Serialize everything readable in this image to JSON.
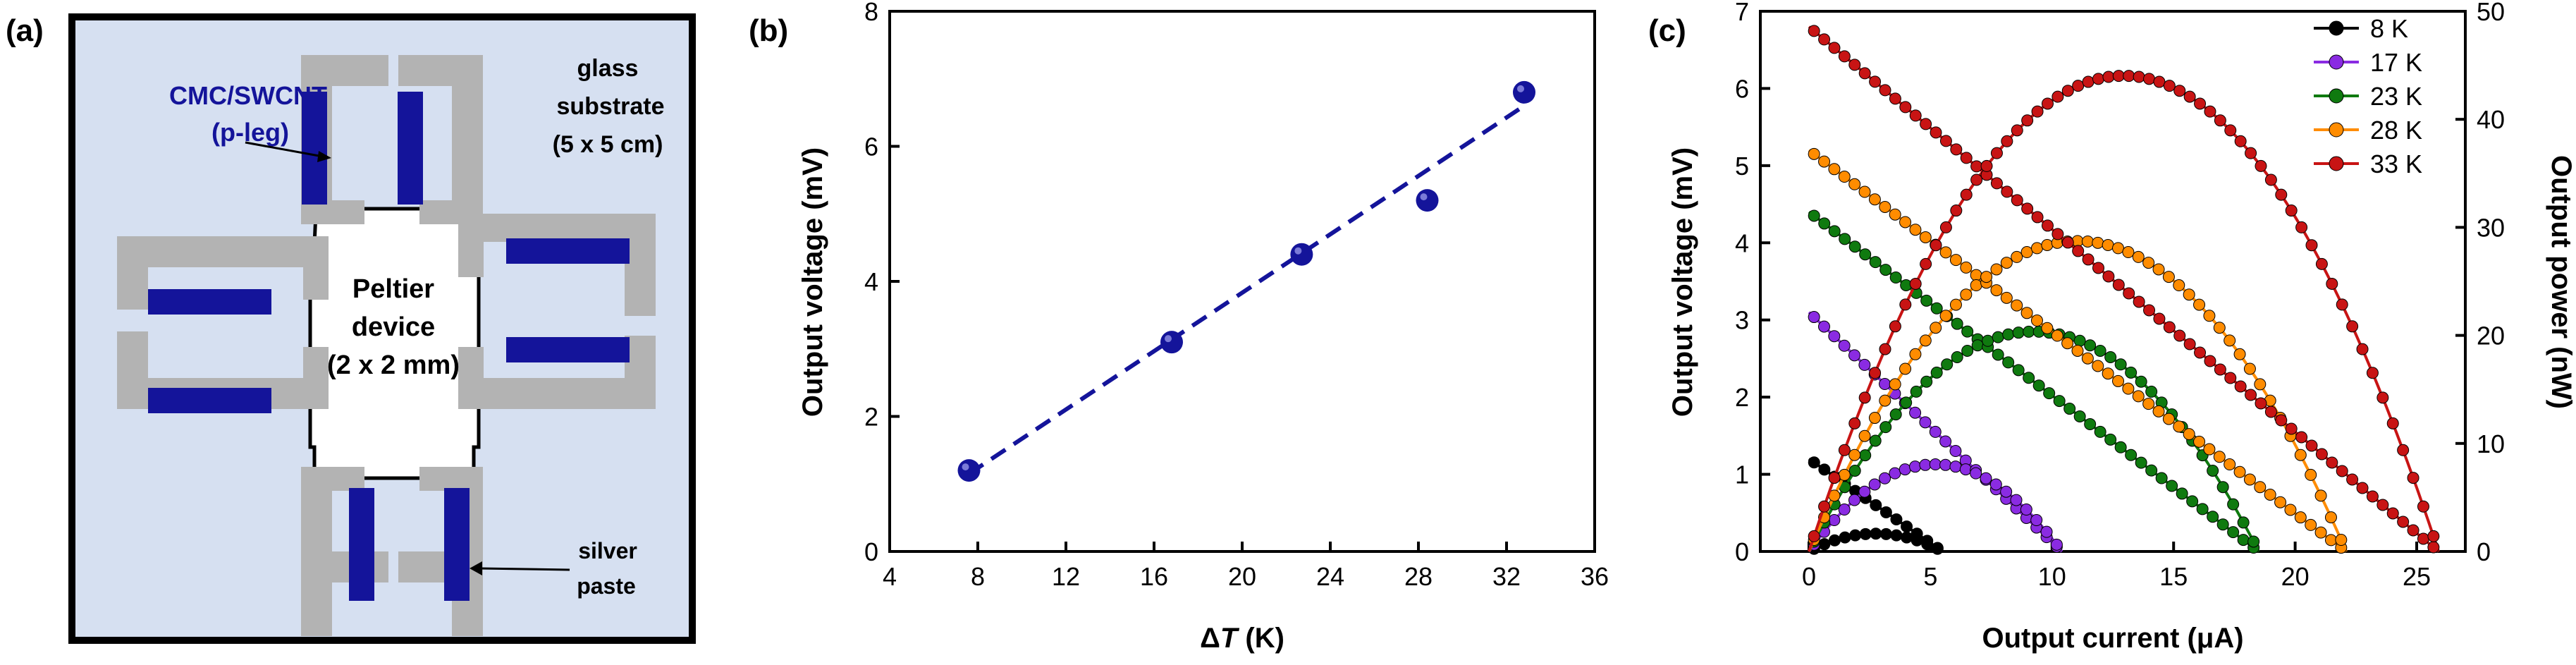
{
  "panel_a": {
    "letter": "(a)",
    "labels": {
      "cnt_line1": "CMC/SWCNT",
      "cnt_line2": "(p-leg)",
      "glass_line1": "glass",
      "glass_line2": "substrate",
      "glass_line3": "(5 x 5 cm)",
      "peltier_line1": "Peltier",
      "peltier_line2": "device",
      "peltier_line3": "(2 x 2 mm)",
      "silver_line1": "silver",
      "silver_line2": "paste"
    },
    "colors": {
      "substrate": "#d6e0f1",
      "electrode": "#b3b3b3",
      "leg": "#14149a",
      "blue_text": "#14149a"
    }
  },
  "chart_data": [
    {
      "id": "b",
      "letter": "(b)",
      "type": "scatter",
      "xlabel_symbol": "Δ",
      "xlabel_var": "T",
      "xlabel_unit": " (K)",
      "ylabel": "Output voltage (mV)",
      "xlim": [
        4,
        36
      ],
      "ylim": [
        0,
        8
      ],
      "xticks": [
        4,
        8,
        12,
        16,
        20,
        24,
        28,
        32,
        36
      ],
      "yticks": [
        0,
        2,
        4,
        6,
        8
      ],
      "points": [
        {
          "x": 7.6,
          "y": 1.2
        },
        {
          "x": 16.8,
          "y": 3.1
        },
        {
          "x": 22.7,
          "y": 4.4
        },
        {
          "x": 28.4,
          "y": 5.2
        },
        {
          "x": 32.8,
          "y": 6.8
        }
      ],
      "fit": {
        "x": [
          7.6,
          32.8
        ],
        "y": [
          1.15,
          6.6
        ]
      },
      "color": "#14149a"
    },
    {
      "id": "c",
      "letter": "(c)",
      "type": "line",
      "xlabel": "Output current (μA)",
      "ylabel_left": "Output voltage (mV)",
      "ylabel_right": "Output power (nW)",
      "xlim": [
        -2,
        27
      ],
      "ylim_left": [
        0,
        7
      ],
      "ylim_right": [
        0,
        50
      ],
      "xticks": [
        0,
        5,
        10,
        15,
        20,
        25
      ],
      "yticks_left": [
        0,
        1,
        2,
        3,
        4,
        5,
        6,
        7
      ],
      "yticks_right": [
        0,
        10,
        20,
        30,
        40,
        50
      ],
      "legend_position": "top-right",
      "series": [
        {
          "name": "8 K",
          "voc": 1.2,
          "isc": 5.5,
          "color": "#000000"
        },
        {
          "name": "17 K",
          "voc": 3.1,
          "isc": 10.4,
          "color": "#8a2be2"
        },
        {
          "name": "23 K",
          "voc": 4.4,
          "isc": 18.5,
          "color": "#0f7a0f"
        },
        {
          "name": "28 K",
          "voc": 5.2,
          "isc": 22.1,
          "color": "#ff8c00"
        },
        {
          "name": "33 K",
          "voc": 6.8,
          "isc": 25.9,
          "color": "#c81414"
        }
      ]
    }
  ]
}
